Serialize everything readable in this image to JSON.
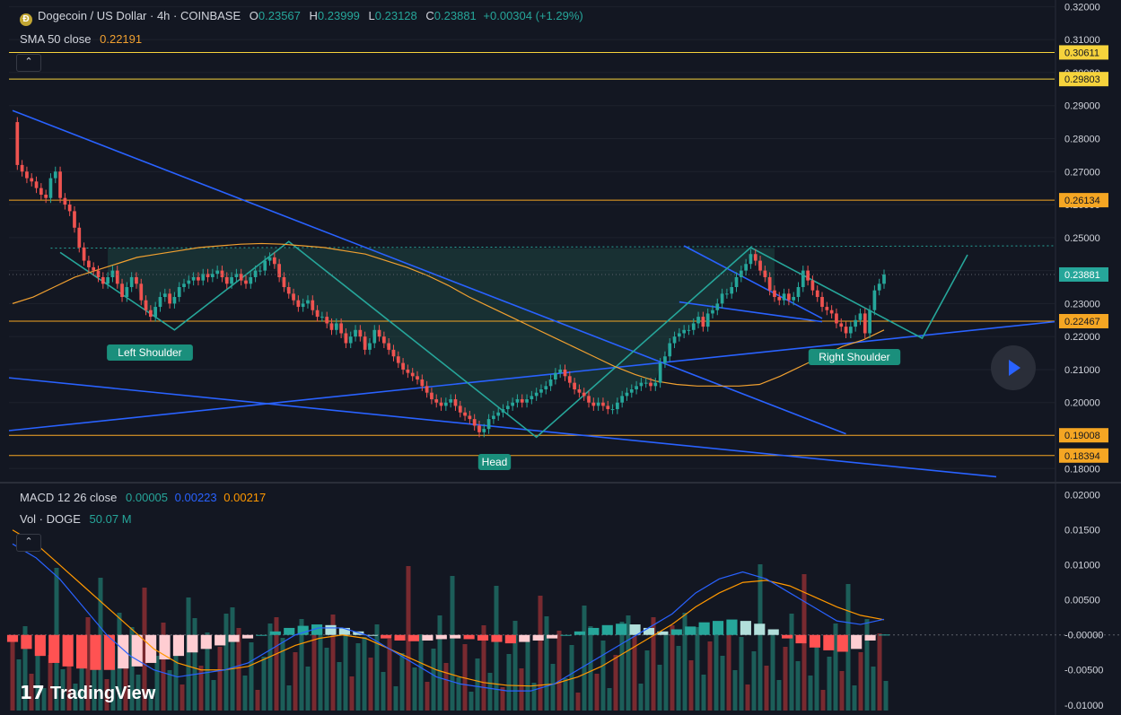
{
  "header": {
    "symbol": "Dogecoin / US Dollar · 4h · COINBASE",
    "open_label": "O",
    "open": "0.23567",
    "high_label": "H",
    "high": "0.23999",
    "low_label": "L",
    "low": "0.23128",
    "close_label": "C",
    "close": "0.23881",
    "change": "+0.00304 (+1.29%)",
    "sma_label": "SMA 50 close",
    "sma_value": "0.22191",
    "macd_label": "MACD 12 26 close",
    "macd_hist": "0.00005",
    "macd_line": "0.00223",
    "macd_signal": "0.00217",
    "vol_label": "Vol · DOGE",
    "vol_value": "50.07 M"
  },
  "branding": {
    "logo_text": "TradingView"
  },
  "colors": {
    "background": "#131722",
    "up": "#26a69a",
    "down": "#ef5350",
    "trendline": "#2962ff",
    "pattern": "#26a69a",
    "sma": "#f0a030",
    "level": "#f5a623",
    "level_hi": "#f6d33c",
    "macd_line": "#2962ff",
    "macd_signal": "#ff9800"
  },
  "chart_data": [
    {
      "type": "candlestick",
      "ylim": [
        0.176,
        0.322
      ],
      "y_ticks": [
        "0.32000",
        "0.31000",
        "0.30000",
        "0.29000",
        "0.28000",
        "0.27000",
        "0.26000",
        "0.25000",
        "0.24000",
        "0.23000",
        "0.22000",
        "0.21000",
        "0.20000",
        "0.19000",
        "0.18000"
      ],
      "last_price": "0.23881",
      "levels": [
        {
          "value": 0.30611,
          "label": "0.30611",
          "color": "#f6d33c"
        },
        {
          "value": 0.29803,
          "label": "0.29803",
          "color": "#f6d33c"
        },
        {
          "value": 0.26134,
          "label": "0.26134",
          "color": "#f5a623"
        },
        {
          "value": 0.22467,
          "label": "0.22467",
          "color": "#f5a623"
        },
        {
          "value": 0.19008,
          "label": "0.19008",
          "color": "#f5a623"
        },
        {
          "value": 0.18394,
          "label": "0.18394",
          "color": "#f5a623"
        }
      ],
      "close": [
        0.285,
        0.272,
        0.27,
        0.268,
        0.267,
        0.265,
        0.263,
        0.262,
        0.268,
        0.27,
        0.262,
        0.26,
        0.258,
        0.253,
        0.247,
        0.243,
        0.241,
        0.24,
        0.238,
        0.236,
        0.238,
        0.24,
        0.236,
        0.232,
        0.235,
        0.238,
        0.236,
        0.231,
        0.228,
        0.226,
        0.229,
        0.232,
        0.233,
        0.23,
        0.232,
        0.235,
        0.236,
        0.237,
        0.238,
        0.237,
        0.239,
        0.238,
        0.239,
        0.24,
        0.238,
        0.236,
        0.238,
        0.239,
        0.237,
        0.236,
        0.238,
        0.24,
        0.24,
        0.243,
        0.244,
        0.242,
        0.238,
        0.235,
        0.233,
        0.231,
        0.229,
        0.23,
        0.231,
        0.228,
        0.226,
        0.226,
        0.224,
        0.222,
        0.224,
        0.221,
        0.218,
        0.22,
        0.222,
        0.22,
        0.216,
        0.218,
        0.222,
        0.22,
        0.218,
        0.216,
        0.214,
        0.212,
        0.21,
        0.209,
        0.208,
        0.207,
        0.205,
        0.203,
        0.201,
        0.2,
        0.199,
        0.2,
        0.201,
        0.199,
        0.197,
        0.196,
        0.195,
        0.193,
        0.191,
        0.192,
        0.195,
        0.196,
        0.197,
        0.198,
        0.199,
        0.2,
        0.201,
        0.2,
        0.201,
        0.202,
        0.203,
        0.204,
        0.205,
        0.207,
        0.209,
        0.21,
        0.208,
        0.206,
        0.204,
        0.203,
        0.202,
        0.2,
        0.199,
        0.2,
        0.199,
        0.198,
        0.198,
        0.2,
        0.202,
        0.203,
        0.204,
        0.205,
        0.206,
        0.206,
        0.205,
        0.206,
        0.212,
        0.214,
        0.218,
        0.22,
        0.221,
        0.222,
        0.222,
        0.224,
        0.226,
        0.223,
        0.227,
        0.228,
        0.23,
        0.233,
        0.233,
        0.235,
        0.238,
        0.24,
        0.242,
        0.245,
        0.243,
        0.24,
        0.238,
        0.234,
        0.232,
        0.231,
        0.233,
        0.231,
        0.232,
        0.235,
        0.24,
        0.237,
        0.234,
        0.232,
        0.229,
        0.228,
        0.227,
        0.224,
        0.223,
        0.221,
        0.223,
        0.225,
        0.227,
        0.221,
        0.228,
        0.234,
        0.236,
        0.23881
      ]
    },
    {
      "type": "line",
      "title": "SMA 50 close",
      "values": [
        0.23,
        0.232,
        0.235,
        0.238,
        0.24,
        0.242,
        0.244,
        0.245,
        0.246,
        0.247,
        0.2475,
        0.248,
        0.2482,
        0.248,
        0.2475,
        0.247,
        0.246,
        0.245,
        0.243,
        0.241,
        0.2385,
        0.2355,
        0.232,
        0.229,
        0.226,
        0.223,
        0.22,
        0.217,
        0.214,
        0.211,
        0.2085,
        0.2065,
        0.2055,
        0.205,
        0.205,
        0.205,
        0.2055,
        0.208,
        0.211,
        0.214,
        0.217,
        0.219,
        0.222
      ]
    },
    {
      "type": "bar",
      "title": "MACD 12 26 close",
      "ylim": [
        -0.0108,
        0.0215
      ],
      "y_ticks": [
        "0.02000",
        "0.01500",
        "0.01000",
        "0.00500",
        "-0.00000",
        "-0.00500",
        "-0.01000"
      ],
      "histogram": [
        -0.001,
        -0.002,
        -0.003,
        -0.004,
        -0.0045,
        -0.0048,
        -0.005,
        -0.005,
        -0.0048,
        -0.0045,
        -0.004,
        -0.0035,
        -0.003,
        -0.0025,
        -0.002,
        -0.0015,
        -0.001,
        -0.0005,
        0.0,
        0.0005,
        0.001,
        0.0013,
        0.0015,
        0.0014,
        0.001,
        0.0005,
        0.0,
        -0.0005,
        -0.0008,
        -0.0009,
        -0.0008,
        -0.0006,
        -0.0005,
        -0.0006,
        -0.0008,
        -0.001,
        -0.0012,
        -0.001,
        -0.0008,
        -0.0005,
        0.0,
        0.0005,
        0.001,
        0.0014,
        0.0016,
        0.0015,
        0.001,
        0.0005,
        0.0008,
        0.0012,
        0.0018,
        0.002,
        0.0022,
        0.002,
        0.0016,
        0.0008,
        -0.0005,
        -0.0012,
        -0.0018,
        -0.0022,
        -0.0024,
        -0.002,
        -0.0008,
        5e-05
      ],
      "macd_line": [
        0.013,
        0.011,
        0.008,
        0.004,
        0.0,
        -0.003,
        -0.005,
        -0.006,
        -0.0055,
        -0.005,
        -0.004,
        -0.002,
        0.0,
        0.001,
        0.001,
        0.0,
        -0.002,
        -0.004,
        -0.006,
        -0.007,
        -0.0075,
        -0.008,
        -0.008,
        -0.007,
        -0.005,
        -0.003,
        -0.001,
        0.001,
        0.003,
        0.006,
        0.008,
        0.009,
        0.008,
        0.006,
        0.004,
        0.002,
        0.0015,
        0.00223
      ],
      "signal_line": [
        0.015,
        0.013,
        0.01,
        0.007,
        0.004,
        0.001,
        -0.002,
        -0.004,
        -0.005,
        -0.005,
        -0.0045,
        -0.003,
        -0.0015,
        -0.0005,
        0.0,
        -0.0005,
        -0.002,
        -0.0035,
        -0.005,
        -0.006,
        -0.0068,
        -0.0072,
        -0.0073,
        -0.007,
        -0.006,
        -0.0045,
        -0.0025,
        -0.0005,
        0.0015,
        0.004,
        0.006,
        0.0075,
        0.0078,
        0.007,
        0.0055,
        0.004,
        0.0028,
        0.00217
      ]
    }
  ],
  "annotations": {
    "left_shoulder": "Left Shoulder",
    "head": "Head",
    "right_shoulder": "Right Shoulder"
  }
}
